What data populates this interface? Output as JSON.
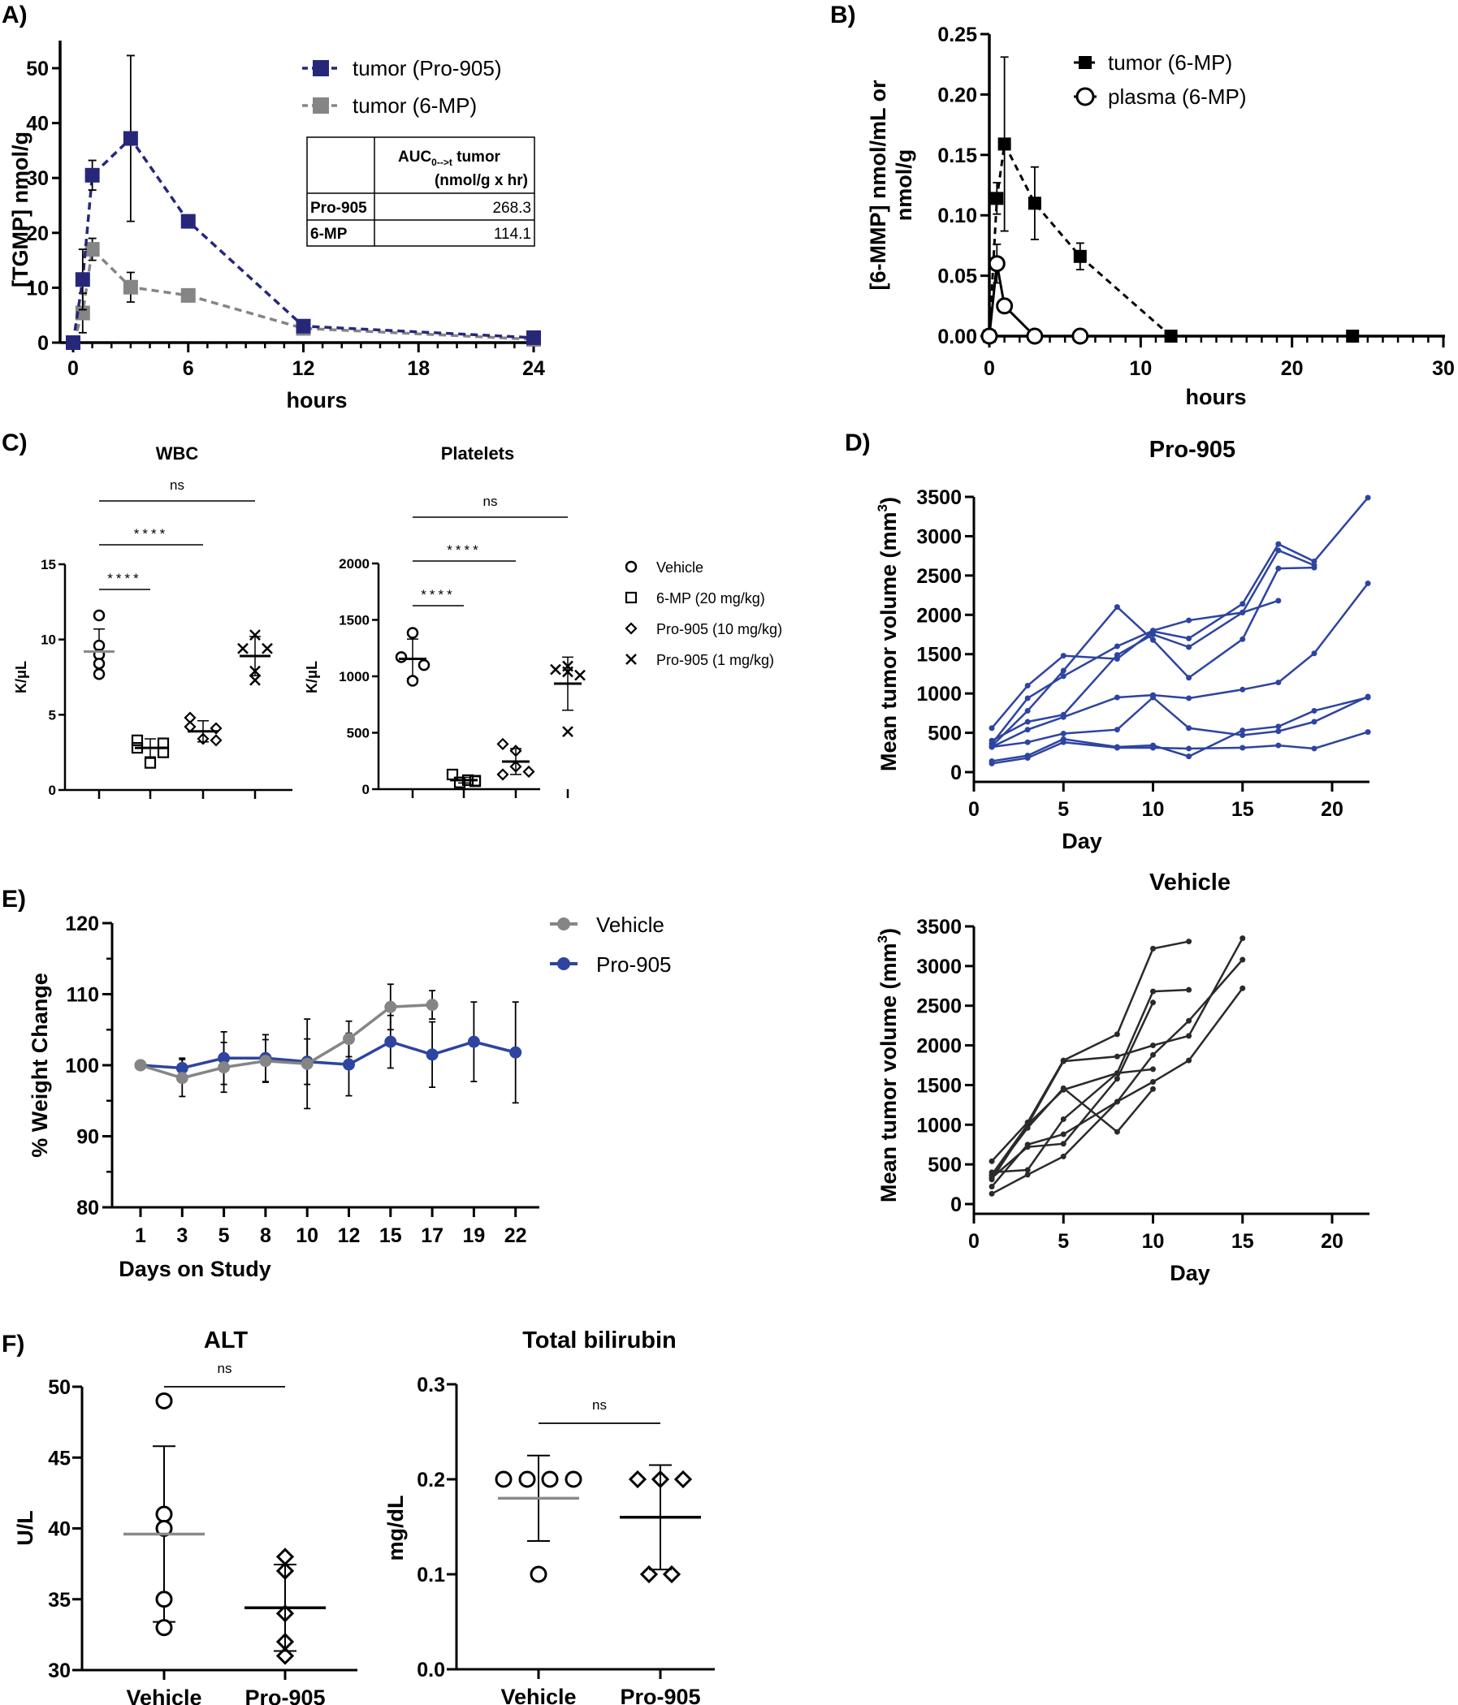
{
  "colors": {
    "navy": "#27277a",
    "grey": "#858585",
    "blue": "#2d44a0",
    "black": "#000000",
    "dark": "#2a2a2a",
    "mean_grey": "#8a8a8a"
  },
  "chart_data": [
    {
      "id": "A",
      "panel_label": "A)",
      "type": "line",
      "title": "",
      "xlabel": "hours",
      "ylabel": "[TGMP] nmol/g",
      "xlim": [
        0,
        24
      ],
      "ylim": [
        0,
        55
      ],
      "xticks": [
        0,
        6,
        12,
        18,
        24
      ],
      "yticks": [
        0,
        10,
        20,
        30,
        40,
        50
      ],
      "series": [
        {
          "name": "tumor (Pro-905)",
          "color": "#27277a",
          "marker": "filled-square",
          "line": "dashed",
          "x": [
            0,
            0.5,
            1,
            3,
            6,
            12,
            24
          ],
          "y": [
            0,
            11.5,
            30.5,
            37.2,
            22.1,
            3.0,
            0.9
          ],
          "err": [
            0,
            5.5,
            2.7,
            15.1,
            0,
            0,
            0
          ]
        },
        {
          "name": "tumor (6-MP)",
          "color": "#858585",
          "marker": "filled-square",
          "line": "dashed",
          "x": [
            0,
            0.5,
            1,
            3,
            6,
            12,
            24
          ],
          "y": [
            0,
            5.4,
            17.0,
            10.1,
            8.6,
            2.6,
            0.6
          ],
          "err": [
            0,
            3.6,
            2.0,
            2.7,
            0,
            0,
            0
          ]
        }
      ],
      "legend": "top-right",
      "table": {
        "header": [
          "",
          "AUC",
          "0-->t",
          " tumor",
          "(nmol/g x hr)"
        ],
        "rows": [
          {
            "label": "Pro-905",
            "value": "268.3"
          },
          {
            "label": "6-MP",
            "value": "114.1"
          }
        ]
      }
    },
    {
      "id": "B",
      "panel_label": "B)",
      "type": "line",
      "title": "",
      "xlabel": "hours",
      "ylabel_line1": "[6-MMP] nmol/mL or",
      "ylabel_line2": "nmol/g",
      "xlim": [
        0,
        30
      ],
      "ylim": [
        0,
        0.25
      ],
      "xticks": [
        0,
        10,
        20,
        30
      ],
      "yticks": [
        "0.00",
        "0.05",
        "0.10",
        "0.15",
        "0.20",
        "0.25"
      ],
      "series": [
        {
          "name": "tumor (6-MP)",
          "color": "#000000",
          "marker": "filled-square",
          "line": "dashed",
          "x": [
            0,
            0.5,
            1,
            3,
            6,
            12,
            24
          ],
          "y": [
            0,
            0.114,
            0.159,
            0.11,
            0.066,
            0,
            0
          ],
          "err": [
            0,
            0.013,
            0.072,
            0.03,
            0.011,
            0,
            0
          ]
        },
        {
          "name": "plasma (6-MP)",
          "color": "#000000",
          "marker": "open-circle",
          "line": "solid",
          "x": [
            0,
            0.5,
            1,
            3,
            6
          ],
          "y": [
            0,
            0.06,
            0.025,
            0,
            0
          ],
          "err": [
            0,
            0.016,
            0,
            0,
            0
          ]
        }
      ],
      "legend": "top-right"
    },
    {
      "id": "C-WBC",
      "panel_label": "C)",
      "type": "scatter",
      "title": "WBC",
      "ylabel": "K/μL",
      "ylim": [
        0,
        15
      ],
      "yticks": [
        0,
        5,
        10,
        15
      ],
      "groups": [
        {
          "name": "Vehicle",
          "marker": "open-circle",
          "values": [
            11.6,
            9.6,
            9.0,
            8.4,
            7.7
          ],
          "mean": 9.2,
          "sd": 1.5,
          "mean_color": "#8a8a8a"
        },
        {
          "name": "6-MP (20 mg/kg)",
          "marker": "open-square",
          "values": [
            3.3,
            2.8,
            3.1,
            2.5,
            1.8
          ],
          "mean": 2.8,
          "sd": 0.6,
          "mean_color": "#000000"
        },
        {
          "name": "Pro-905 (10 mg/kg)",
          "marker": "open-diamond",
          "values": [
            4.8,
            4.1,
            4.2,
            3.3,
            3.4
          ],
          "mean": 3.9,
          "sd": 0.7,
          "mean_color": "#000000"
        },
        {
          "name": "Pro-905 (1 mg/kg)",
          "marker": "cross",
          "values": [
            10.3,
            9.4,
            9.4,
            7.9,
            7.3
          ],
          "mean": 8.9,
          "sd": 1.3,
          "mean_color": "#000000"
        }
      ],
      "significance": [
        {
          "from": 0,
          "to": 1,
          "label": "****"
        },
        {
          "from": 0,
          "to": 2,
          "label": "****"
        },
        {
          "from": 0,
          "to": 3,
          "label": "ns"
        }
      ]
    },
    {
      "id": "C-Platelets",
      "type": "scatter",
      "title": "Platelets",
      "ylabel": "K/μL",
      "ylim": [
        0,
        2000
      ],
      "yticks": [
        0,
        500,
        1000,
        1500,
        2000
      ],
      "groups": [
        {
          "name": "Vehicle",
          "marker": "open-circle",
          "values": [
            1385,
            1170,
            1100,
            960
          ],
          "mean": 1155,
          "sd": 175,
          "mean_color": "#000000"
        },
        {
          "name": "6-MP (20 mg/kg)",
          "marker": "open-square",
          "values": [
            130,
            60,
            80,
            70,
            75
          ],
          "mean": 80,
          "sd": 25,
          "mean_color": "#000000"
        },
        {
          "name": "Pro-905 (10 mg/kg)",
          "marker": "open-diamond",
          "values": [
            400,
            340,
            200,
            130,
            155
          ],
          "mean": 245,
          "sd": 115,
          "mean_color": "#000000"
        },
        {
          "name": "Pro-905 (1 mg/kg)",
          "marker": "cross",
          "values": [
            1060,
            1090,
            1040,
            1010,
            510
          ],
          "mean": 935,
          "sd": 235,
          "mean_color": "#000000"
        }
      ],
      "significance": [
        {
          "from": 0,
          "to": 1,
          "label": "****"
        },
        {
          "from": 0,
          "to": 2,
          "label": "****"
        },
        {
          "from": 0,
          "to": 3,
          "label": "ns"
        }
      ],
      "legend": "right",
      "legend_items": [
        "Vehicle",
        "6-MP (20 mg/kg)",
        "Pro-905 (10 mg/kg)",
        "Pro-905 (1 mg/kg)"
      ]
    },
    {
      "id": "D-Pro905",
      "panel_label": "D)",
      "type": "line",
      "title": "Pro-905",
      "xlabel": "Day",
      "ylabel": "Mean tumor volume (mm",
      "ylabel_sup": "3",
      "ylabel_end": ")",
      "xlim": [
        0,
        22
      ],
      "ylim": [
        0,
        3500
      ],
      "xticks": [
        0,
        5,
        10,
        15,
        20
      ],
      "yticks": [
        0,
        500,
        1000,
        1500,
        2000,
        2500,
        3000,
        3500
      ],
      "color": "#2d44a0",
      "series": [
        {
          "x": [
            1,
            3,
            5,
            8,
            10,
            12,
            15,
            17,
            19,
            22
          ],
          "y": [
            560,
            1100,
            1480,
            1440,
            1790,
            1700,
            2140,
            2900,
            2680,
            3490
          ]
        },
        {
          "x": [
            1,
            3,
            5,
            8,
            10,
            12,
            15,
            17,
            19
          ],
          "y": [
            360,
            940,
            1220,
            1600,
            1800,
            1930,
            2030,
            2820,
            2630
          ]
        },
        {
          "x": [
            1,
            3,
            5,
            8,
            10,
            12,
            15,
            17,
            19
          ],
          "y": [
            330,
            780,
            1290,
            2100,
            1680,
            1200,
            1690,
            2590,
            2600
          ]
        },
        {
          "x": [
            1,
            3,
            5,
            8,
            10,
            12,
            15,
            17
          ],
          "y": [
            400,
            640,
            730,
            1490,
            1750,
            1590,
            2030,
            2180
          ]
        },
        {
          "x": [
            1,
            3,
            5,
            8,
            10,
            12,
            15,
            17,
            19,
            22
          ],
          "y": [
            320,
            540,
            700,
            950,
            980,
            940,
            1050,
            1140,
            1510,
            2400
          ]
        },
        {
          "x": [
            1,
            3,
            5,
            8,
            10,
            12,
            15,
            17,
            19,
            22
          ],
          "y": [
            320,
            380,
            490,
            540,
            950,
            560,
            470,
            520,
            640,
            960
          ]
        },
        {
          "x": [
            1,
            3,
            5,
            8,
            10,
            12,
            15,
            17,
            19,
            22
          ],
          "y": [
            140,
            210,
            420,
            320,
            340,
            200,
            530,
            580,
            780,
            950
          ]
        },
        {
          "x": [
            1,
            3,
            5,
            8,
            10,
            12,
            15,
            17,
            19,
            22
          ],
          "y": [
            110,
            180,
            380,
            310,
            310,
            300,
            310,
            340,
            300,
            510
          ]
        }
      ]
    },
    {
      "id": "D-Vehicle",
      "type": "line",
      "title": "Vehicle",
      "xlabel": "Day",
      "ylabel": "Mean tumor volume (mm",
      "ylabel_sup": "3",
      "ylabel_end": ")",
      "xlim": [
        0,
        22
      ],
      "ylim": [
        0,
        3500
      ],
      "xticks": [
        0,
        5,
        10,
        15,
        20
      ],
      "yticks": [
        0,
        500,
        1000,
        1500,
        2000,
        2500,
        3000,
        3500
      ],
      "color": "#2a2a2a",
      "series": [
        {
          "x": [
            1,
            3,
            5,
            8,
            10,
            12
          ],
          "y": [
            540,
            1030,
            1810,
            2140,
            3220,
            3310
          ]
        },
        {
          "x": [
            1,
            3,
            5,
            8,
            10,
            12
          ],
          "y": [
            400,
            430,
            1070,
            1650,
            2680,
            2700
          ]
        },
        {
          "x": [
            1,
            3,
            5,
            8,
            10
          ],
          "y": [
            330,
            720,
            760,
            1580,
            2540
          ]
        },
        {
          "x": [
            1,
            3,
            5,
            8,
            10,
            12,
            15
          ],
          "y": [
            310,
            1000,
            1800,
            1860,
            2000,
            2120,
            3350
          ]
        },
        {
          "x": [
            1,
            3,
            5,
            8,
            10,
            12,
            15
          ],
          "y": [
            220,
            750,
            880,
            1290,
            1880,
            2310,
            3080
          ]
        },
        {
          "x": [
            1,
            3,
            5,
            8,
            10
          ],
          "y": [
            370,
            1000,
            1440,
            1650,
            1700
          ]
        },
        {
          "x": [
            1,
            3,
            5,
            8,
            10
          ],
          "y": [
            360,
            960,
            1460,
            910,
            1450
          ]
        },
        {
          "x": [
            1,
            3,
            5,
            8,
            10,
            12,
            15
          ],
          "y": [
            130,
            370,
            600,
            1290,
            1540,
            1810,
            2720
          ]
        }
      ]
    },
    {
      "id": "E",
      "panel_label": "E)",
      "type": "line",
      "title": "",
      "xlabel": "Days on Study",
      "ylabel": "% Weight Change",
      "categories": [
        "1",
        "3",
        "5",
        "8",
        "10",
        "12",
        "15",
        "17",
        "19",
        "22"
      ],
      "ylim": [
        80,
        120
      ],
      "yticks": [
        80,
        90,
        100,
        110,
        120
      ],
      "series": [
        {
          "name": "Vehicle",
          "color": "#858585",
          "values": [
            100,
            98.2,
            99.7,
            100.6,
            100.2,
            103.7,
            108.2,
            108.5,
            null,
            null
          ],
          "err": [
            0,
            2.6,
            3.5,
            3.0,
            6.3,
            2.5,
            3.2,
            2.0,
            null,
            null
          ]
        },
        {
          "name": "Pro-905",
          "color": "#2d44a0",
          "values": [
            100,
            99.6,
            101.0,
            101.0,
            100.5,
            100.1,
            103.3,
            101.5,
            103.3,
            101.8
          ],
          "err": [
            0,
            1.4,
            3.7,
            3.3,
            3.2,
            4.4,
            3.7,
            4.6,
            5.6,
            7.1
          ]
        }
      ],
      "legend": "top-right"
    },
    {
      "id": "F-ALT",
      "panel_label": "F)",
      "type": "scatter",
      "title": "ALT",
      "ylabel": "U/L",
      "ylim": [
        30,
        50
      ],
      "yticks": [
        30,
        35,
        40,
        45,
        50
      ],
      "categories": [
        "Vehicle",
        "Pro-905"
      ],
      "groups": [
        {
          "name": "Vehicle",
          "marker": "open-circle",
          "values": [
            49,
            41,
            40,
            35,
            33
          ],
          "mean": 39.6,
          "sd": 6.2,
          "mean_color": "#8a8a8a"
        },
        {
          "name": "Pro-905",
          "marker": "open-diamond",
          "values": [
            38,
            37,
            34,
            32,
            31
          ],
          "mean": 34.4,
          "sd": 3.05,
          "mean_color": "#000000"
        }
      ],
      "significance": [
        {
          "from": 0,
          "to": 1,
          "label": "ns"
        }
      ]
    },
    {
      "id": "F-Bili",
      "type": "scatter",
      "title": "Total bilirubin",
      "ylabel": "mg/dL",
      "ylim": [
        0,
        0.3
      ],
      "yticks": [
        "0.0",
        "0.1",
        "0.2",
        "0.3"
      ],
      "categories": [
        "Vehicle",
        "Pro-905"
      ],
      "groups": [
        {
          "name": "Vehicle",
          "marker": "open-circle",
          "values": [
            0.2,
            0.2,
            0.2,
            0.2,
            0.1
          ],
          "mean": 0.18,
          "sd": 0.045,
          "mean_color": "#8a8a8a"
        },
        {
          "name": "Pro-905",
          "marker": "open-diamond",
          "values": [
            0.2,
            0.2,
            0.2,
            0.1,
            0.1
          ],
          "mean": 0.16,
          "sd": 0.055,
          "mean_color": "#000000"
        }
      ],
      "significance": [
        {
          "from": 0,
          "to": 1,
          "label": "ns"
        }
      ]
    }
  ]
}
